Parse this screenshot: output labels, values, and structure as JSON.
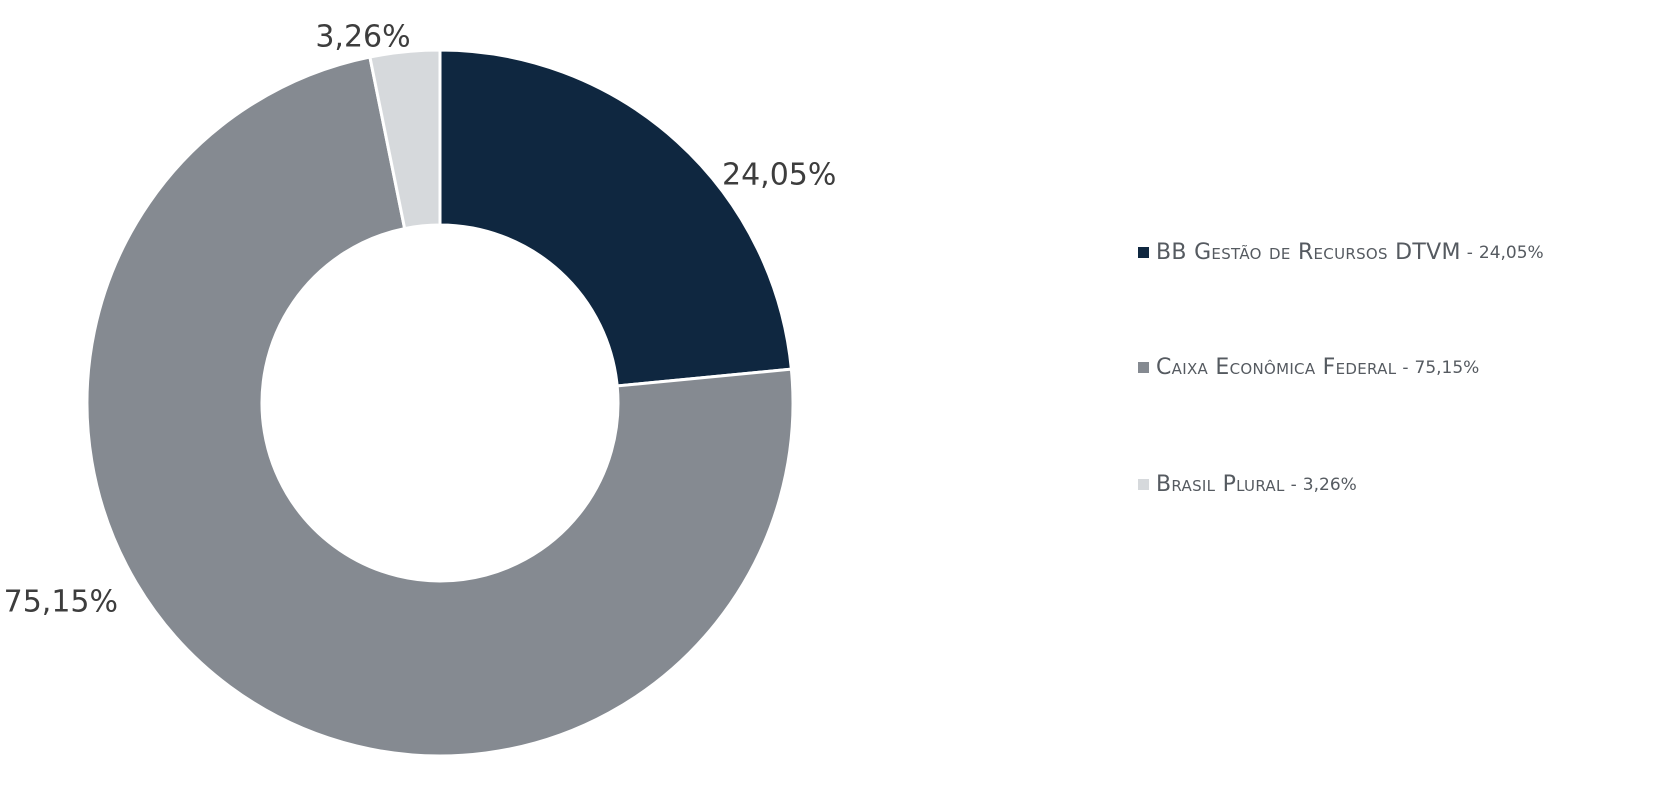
{
  "chart_data": {
    "type": "pie",
    "donut": true,
    "title": "",
    "legend_position": "right",
    "slices": [
      {
        "label": "BB Gestão de Recursos DTVM",
        "value": 24.05,
        "value_text": "24,05%",
        "color": "#0f2740"
      },
      {
        "label": "Caixa Econômica Federal",
        "value": 75.15,
        "value_text": "75,15%",
        "color": "#858a91"
      },
      {
        "label": "Brasil Plural",
        "value": 3.26,
        "value_text": "3,26%",
        "color": "#d6d9dc"
      }
    ]
  }
}
